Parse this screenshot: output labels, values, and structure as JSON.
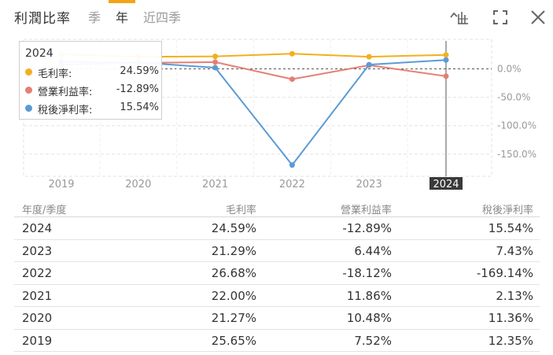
{
  "header": {
    "title": "利潤比率",
    "tabs": [
      {
        "label": "季",
        "active": false
      },
      {
        "label": "年",
        "active": true
      },
      {
        "label": "近四季",
        "active": false
      }
    ],
    "accent_color": "#f2a516"
  },
  "tooltip": {
    "year": "2024",
    "rows": [
      {
        "label": "毛利率:",
        "value": "24.59%",
        "color": "#f2b01e"
      },
      {
        "label": "營業利益率:",
        "value": "-12.89%",
        "color": "#e57f74"
      },
      {
        "label": "稅後淨利率:",
        "value": "15.54%",
        "color": "#5b9bd5"
      }
    ]
  },
  "chart_data": {
    "type": "line",
    "categories": [
      "2019",
      "2020",
      "2021",
      "2022",
      "2023",
      "2024"
    ],
    "series": [
      {
        "name": "毛利率",
        "color": "#f2b01e",
        "values": [
          25.65,
          21.27,
          22.0,
          26.68,
          21.29,
          24.59
        ]
      },
      {
        "name": "營業利益率",
        "color": "#e57f74",
        "values": [
          7.52,
          10.48,
          11.86,
          -18.12,
          6.44,
          -12.89
        ]
      },
      {
        "name": "稅後淨利率",
        "color": "#5b9bd5",
        "values": [
          12.35,
          11.36,
          2.13,
          -169.14,
          7.43,
          15.54
        ]
      }
    ],
    "y_ticks": [
      0,
      -50,
      -100,
      -150
    ],
    "y_tick_labels": [
      "0.0%",
      "-50.0%",
      "-100.0%",
      "-150.0%"
    ],
    "ylim": [
      -190,
      40
    ],
    "highlighted_category": "2024",
    "grid": true
  },
  "table": {
    "headers": [
      "年度/季度",
      "毛利率",
      "營業利益率",
      "稅後淨利率"
    ],
    "rows": [
      [
        "2024",
        "24.59%",
        "-12.89%",
        "15.54%"
      ],
      [
        "2023",
        "21.29%",
        "6.44%",
        "7.43%"
      ],
      [
        "2022",
        "26.68%",
        "-18.12%",
        "-169.14%"
      ],
      [
        "2021",
        "22.00%",
        "11.86%",
        "2.13%"
      ],
      [
        "2020",
        "21.27%",
        "10.48%",
        "11.36%"
      ],
      [
        "2019",
        "25.65%",
        "7.52%",
        "12.35%"
      ]
    ]
  },
  "icons": [
    "line-chart-icon",
    "fullscreen-icon",
    "close-icon"
  ]
}
